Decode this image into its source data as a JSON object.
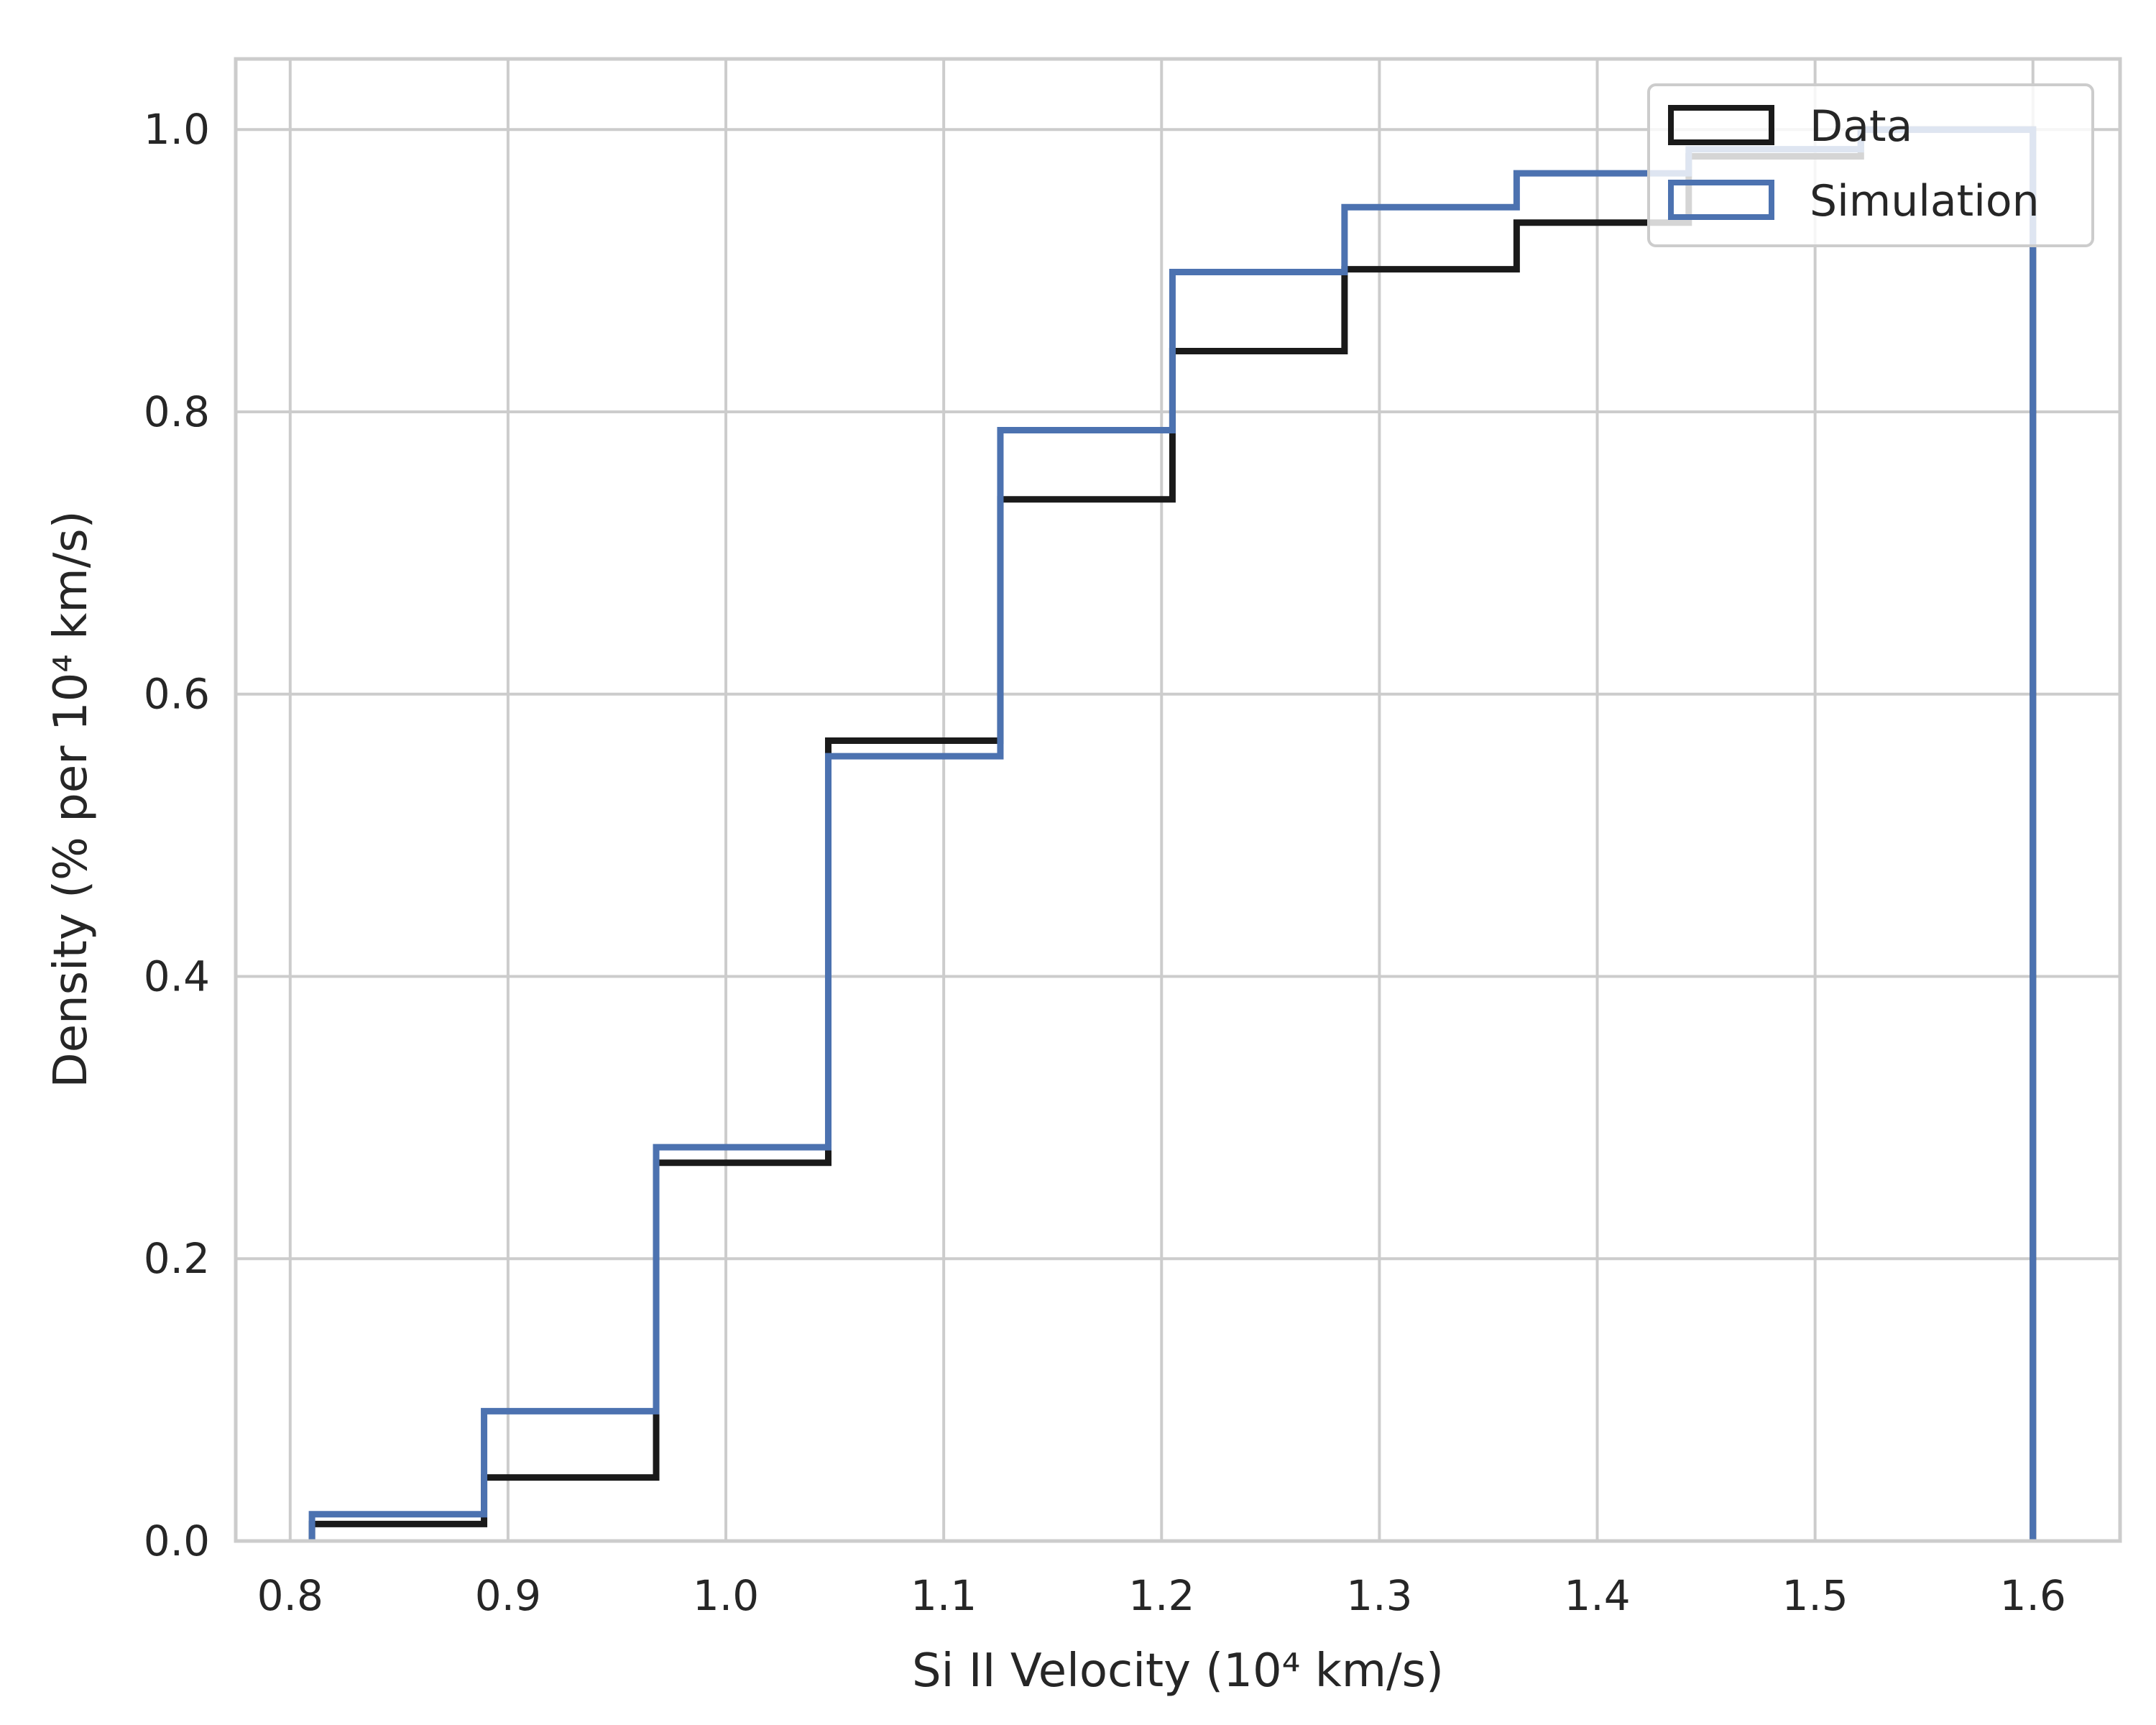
{
  "chart_data": {
    "type": "step",
    "xlabel": "Si II Velocity (10⁴ km/s)",
    "ylabel": "Density (% per 10⁴ km/s)",
    "xlim": [
      0.775,
      1.64
    ],
    "ylim": [
      0.0,
      1.05
    ],
    "xticks": [
      0.8,
      0.9,
      1.0,
      1.1,
      1.2,
      1.3,
      1.4,
      1.5,
      1.6
    ],
    "xtick_labels": [
      "0.8",
      "0.9",
      "1.0",
      "1.1",
      "1.2",
      "1.3",
      "1.4",
      "1.5",
      "1.6"
    ],
    "yticks": [
      0.0,
      0.2,
      0.4,
      0.6,
      0.8,
      1.0
    ],
    "ytick_labels": [
      "0.0",
      "0.2",
      "0.4",
      "0.6",
      "0.8",
      "1.0"
    ],
    "grid": true,
    "legend_position": "top-right",
    "bin_edges": [
      0.81,
      0.889,
      0.968,
      1.047,
      1.126,
      1.205,
      1.284,
      1.363,
      1.442,
      1.521,
      1.6
    ],
    "series": [
      {
        "name": "Data",
        "color": "#1a1a1a",
        "values": [
          0.012,
          0.045,
          0.268,
          0.567,
          0.738,
          0.843,
          0.901,
          0.934,
          0.981,
          1.0
        ]
      },
      {
        "name": "Simulation",
        "color": "#4c72b0",
        "values": [
          0.019,
          0.092,
          0.279,
          0.556,
          0.787,
          0.899,
          0.945,
          0.969,
          0.986,
          1.0
        ]
      }
    ]
  }
}
